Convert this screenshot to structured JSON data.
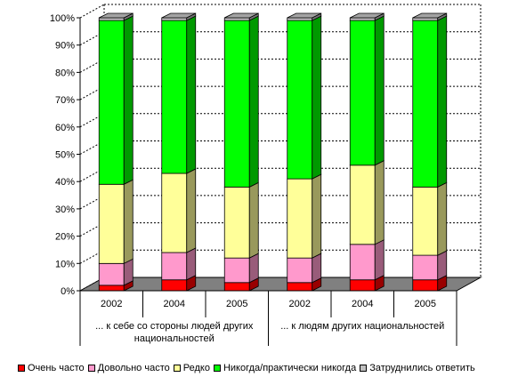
{
  "chart_data": {
    "type": "bar",
    "stacked": true,
    "normalized": true,
    "title": "",
    "xlabel": "",
    "ylabel": "",
    "ylim": [
      0,
      100
    ],
    "y_ticks": [
      "0%",
      "10%",
      "20%",
      "30%",
      "40%",
      "50%",
      "60%",
      "70%",
      "80%",
      "90%",
      "100%"
    ],
    "grid": true,
    "legend_position": "bottom",
    "categories": [
      "2002",
      "2004",
      "2005",
      "2002",
      "2004",
      "2005"
    ],
    "groups": [
      {
        "label": "... к себе со стороны людей других национальностей",
        "span": [
          0,
          2
        ]
      },
      {
        "label": "... к людям других национальностей",
        "span": [
          3,
          5
        ]
      }
    ],
    "series": [
      {
        "name": "Очень часто",
        "color": "#ff0000",
        "values": [
          2,
          4,
          3,
          3,
          4,
          4
        ]
      },
      {
        "name": "Довольно часто",
        "color": "#ff99cc",
        "values": [
          8,
          10,
          9,
          9,
          13,
          9
        ]
      },
      {
        "name": "Редко",
        "color": "#ffff99",
        "values": [
          29,
          29,
          26,
          29,
          29,
          25
        ]
      },
      {
        "name": "Никогда/практически никогда",
        "color": "#00ff00",
        "values": [
          60,
          56,
          61,
          58,
          53,
          61
        ]
      },
      {
        "name": "Затруднились ответить",
        "color": "#c0c0c0",
        "values": [
          1,
          1,
          1,
          1,
          1,
          1
        ]
      }
    ]
  }
}
